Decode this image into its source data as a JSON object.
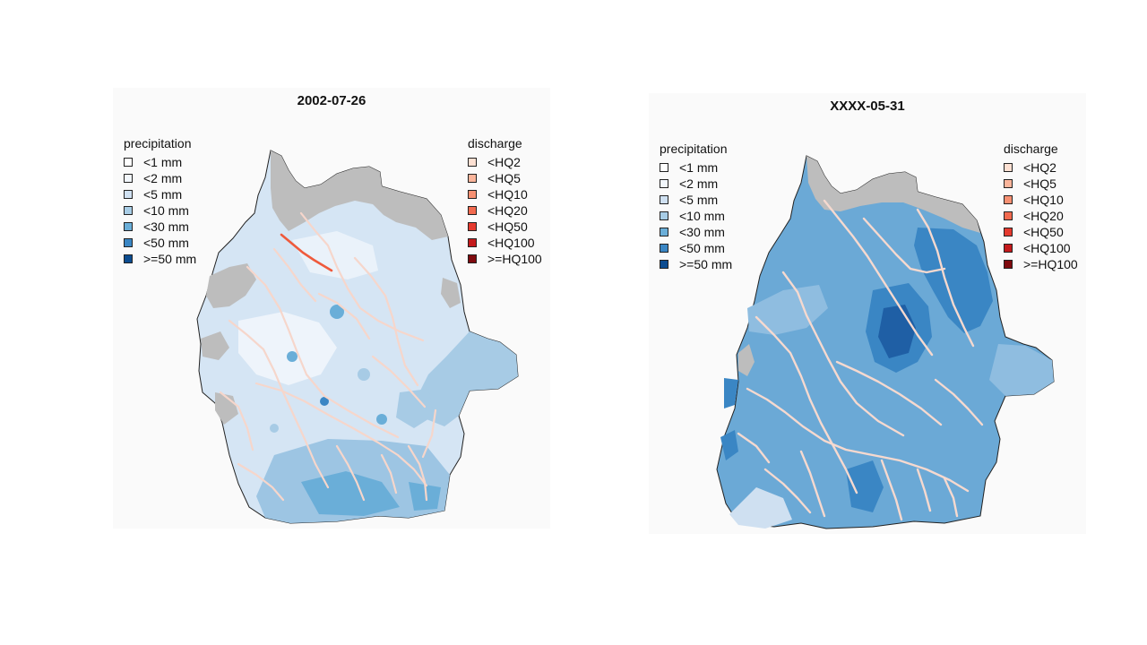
{
  "panels": [
    {
      "title": "2002-07-26",
      "precip_title": "precipitation",
      "discharge_title": "discharge"
    },
    {
      "title": "XXXX-05-31",
      "precip_title": "precipitation",
      "discharge_title": "discharge"
    }
  ],
  "precipitation_legend": [
    {
      "label": "<1 mm",
      "color": "#ffffff"
    },
    {
      "label": "<2 mm",
      "color": "#f2f7fc"
    },
    {
      "label": "<5 mm",
      "color": "#cfe0f1"
    },
    {
      "label": "<10 mm",
      "color": "#a8cde6"
    },
    {
      "label": "<30 mm",
      "color": "#6aaed8"
    },
    {
      "label": "<50 mm",
      "color": "#3a86c4"
    },
    {
      "label": ">=50 mm",
      "color": "#0c4c90"
    }
  ],
  "discharge_legend": [
    {
      "label": "<HQ2",
      "color": "#fde0d2"
    },
    {
      "label": "<HQ5",
      "color": "#fbb59b"
    },
    {
      "label": "<HQ10",
      "color": "#f79072"
    },
    {
      "label": "<HQ20",
      "color": "#f26a4f"
    },
    {
      "label": "<HQ50",
      "color": "#e53a2f"
    },
    {
      "label": "<HQ100",
      "color": "#c41a1c"
    },
    {
      "label": ">=HQ100",
      "color": "#7f0a0e"
    }
  ],
  "colors": {
    "no_data_gray": "#bdbdbd",
    "river": "#f6d9cf",
    "river_highlight": "#ef5a3c",
    "left_base": "#d3e4f4",
    "right_base": "#6ba9d6"
  }
}
